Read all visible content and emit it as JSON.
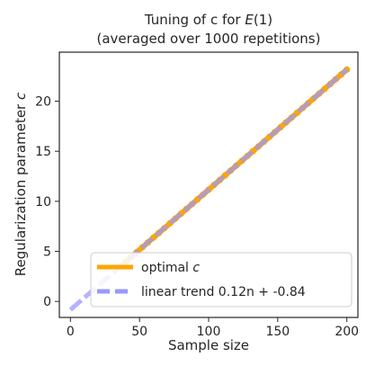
{
  "chart_data": {
    "type": "line",
    "title": {
      "line1_prefix": "Tuning of c for ",
      "line1_math": "E",
      "line1_suffix": "(1)",
      "line2": "(averaged over 1000 repetitions)"
    },
    "xlabel": "Sample size",
    "ylabel_prefix": "Regularization parameter ",
    "ylabel_math": "c",
    "xlim": [
      -8,
      208
    ],
    "ylim": [
      -1.6,
      24.9
    ],
    "xticks": [
      0,
      50,
      100,
      150,
      200
    ],
    "yticks": [
      0,
      5,
      10,
      15,
      20
    ],
    "grid": false,
    "legend_position": "lower-right",
    "colors": {
      "optimal": "#FFA500",
      "trend": "#9999FF",
      "overlap": "#A56C5E",
      "axis": "#262626"
    },
    "series": [
      {
        "name_prefix": "optimal ",
        "name_math": "c",
        "style": "solid",
        "x": [
          40,
          44,
          48,
          52,
          56,
          60,
          64,
          68,
          72,
          76,
          80,
          84,
          88,
          92,
          96,
          100,
          104,
          108,
          112,
          116,
          120,
          124,
          128,
          132,
          136,
          140,
          144,
          148,
          152,
          156,
          160,
          164,
          168,
          172,
          176,
          180,
          184,
          188,
          192,
          196,
          200
        ],
        "y": [
          3.96,
          4.44,
          4.92,
          5.4,
          5.88,
          6.36,
          6.84,
          7.32,
          7.8,
          8.28,
          8.76,
          9.24,
          9.72,
          10.2,
          10.68,
          11.16,
          11.64,
          12.12,
          12.6,
          13.08,
          13.56,
          14.04,
          14.52,
          15.0,
          15.48,
          15.96,
          16.44,
          16.92,
          17.4,
          17.88,
          18.36,
          18.84,
          19.32,
          19.8,
          20.28,
          20.76,
          21.24,
          21.72,
          22.2,
          22.68,
          23.16
        ]
      },
      {
        "name": "linear trend 0.12n + -0.84",
        "style": "dashed",
        "slope": 0.12,
        "intercept": -0.84,
        "x_range": [
          0,
          200
        ]
      }
    ]
  }
}
